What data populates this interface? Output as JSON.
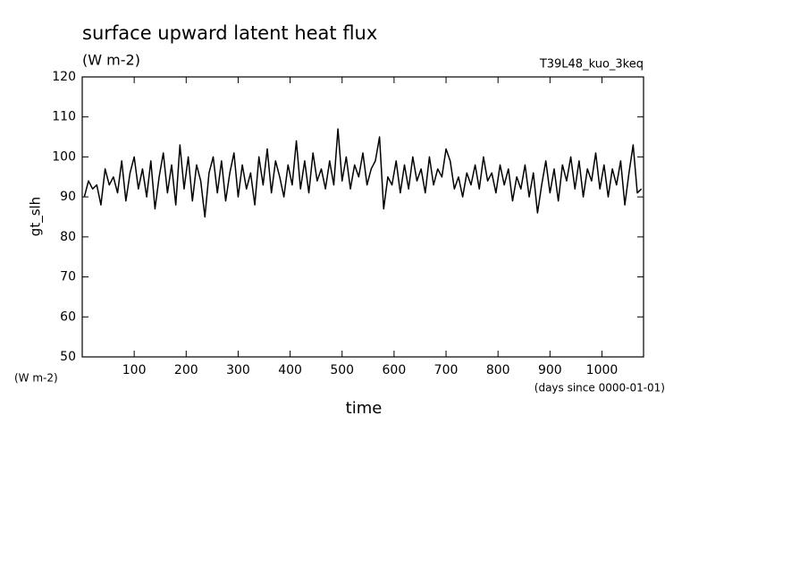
{
  "chart_data": {
    "type": "line",
    "title": "surface upward latent heat flux",
    "subtitle": "(W m-2)",
    "run_label": "T39L48_kuo_3keq",
    "y_label": "gt_slh",
    "y_unit": "(W m-2)",
    "x_label": "time",
    "x_unit": "(days since 0000-01-01)",
    "color": "#000000",
    "x": [
      4,
      12,
      20,
      28,
      36,
      44,
      52,
      60,
      68,
      76,
      84,
      92,
      100,
      108,
      116,
      124,
      132,
      140,
      148,
      156,
      164,
      172,
      180,
      188,
      196,
      204,
      212,
      220,
      228,
      236,
      244,
      252,
      260,
      268,
      276,
      284,
      292,
      300,
      308,
      316,
      324,
      332,
      340,
      348,
      356,
      364,
      372,
      380,
      388,
      396,
      404,
      412,
      420,
      428,
      436,
      444,
      452,
      460,
      468,
      476,
      484,
      492,
      500,
      508,
      516,
      524,
      532,
      540,
      548,
      556,
      564,
      572,
      580,
      588,
      596,
      604,
      612,
      620,
      628,
      636,
      644,
      652,
      660,
      668,
      676,
      684,
      692,
      700,
      708,
      716,
      724,
      732,
      740,
      748,
      756,
      764,
      772,
      780,
      788,
      796,
      804,
      812,
      820,
      828,
      836,
      844,
      852,
      860,
      868,
      876,
      884,
      892,
      900,
      908,
      916,
      924,
      932,
      940,
      948,
      956,
      964,
      972,
      980,
      988,
      996,
      1004,
      1012,
      1020,
      1028,
      1036,
      1044,
      1052,
      1060,
      1068,
      1076
    ],
    "values": [
      90,
      94,
      92,
      93,
      88,
      97,
      93,
      95,
      91,
      99,
      89,
      96,
      100,
      92,
      97,
      90,
      99,
      87,
      95,
      101,
      91,
      98,
      88,
      103,
      92,
      100,
      89,
      98,
      94,
      85,
      96,
      100,
      91,
      99,
      89,
      96,
      101,
      90,
      98,
      92,
      96,
      88,
      100,
      93,
      102,
      91,
      99,
      95,
      90,
      98,
      93,
      104,
      92,
      99,
      91,
      101,
      94,
      97,
      92,
      99,
      93,
      107,
      94,
      100,
      92,
      98,
      95,
      101,
      93,
      97,
      99,
      105,
      87,
      95,
      93,
      99,
      91,
      98,
      92,
      100,
      94,
      97,
      91,
      100,
      93,
      97,
      95,
      102,
      99,
      92,
      95,
      90,
      96,
      93,
      98,
      92,
      100,
      94,
      96,
      91,
      98,
      93,
      97,
      89,
      95,
      92,
      98,
      90,
      96,
      86,
      93,
      99,
      91,
      97,
      89,
      98,
      94,
      100,
      92,
      99,
      90,
      97,
      94,
      101,
      92,
      98,
      90,
      97,
      93,
      99,
      88,
      96,
      103,
      91,
      92
    ],
    "xlim": [
      0,
      1080
    ],
    "ylim": [
      50,
      120
    ],
    "xticks": [
      100,
      200,
      300,
      400,
      500,
      600,
      700,
      800,
      900,
      1000
    ],
    "yticks": [
      50,
      60,
      70,
      80,
      90,
      100,
      110,
      120
    ]
  }
}
